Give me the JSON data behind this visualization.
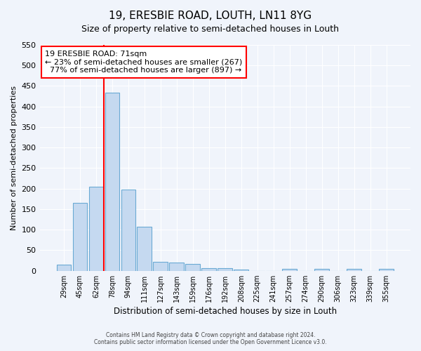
{
  "title": "19, ERESBIE ROAD, LOUTH, LN11 8YG",
  "subtitle": "Size of property relative to semi-detached houses in Louth",
  "xlabel": "Distribution of semi-detached houses by size in Louth",
  "ylabel": "Number of semi-detached properties",
  "bar_labels": [
    "29sqm",
    "45sqm",
    "62sqm",
    "78sqm",
    "94sqm",
    "111sqm",
    "127sqm",
    "143sqm",
    "159sqm",
    "176sqm",
    "192sqm",
    "208sqm",
    "225sqm",
    "241sqm",
    "257sqm",
    "274sqm",
    "290sqm",
    "306sqm",
    "323sqm",
    "339sqm",
    "355sqm"
  ],
  "bar_values": [
    15,
    165,
    205,
    433,
    197,
    107,
    21,
    20,
    17,
    6,
    6,
    3,
    0,
    0,
    5,
    0,
    5,
    0,
    5,
    0,
    5
  ],
  "bar_color": "#c5d9f0",
  "bar_edge_color": "#6aaad4",
  "property_sqm": 71,
  "pct_smaller": 23,
  "n_smaller": 267,
  "pct_larger": 77,
  "n_larger": 897,
  "annotation_label": "19 ERESBIE ROAD: 71sqm",
  "ylim_max": 550,
  "footer1": "Contains HM Land Registry data © Crown copyright and database right 2024.",
  "footer2": "Contains public sector information licensed under the Open Government Licence v3.0.",
  "bg_color": "#f0f4fb",
  "plot_bg_color": "#f0f4fb",
  "grid_color": "#ffffff",
  "title_fontsize": 11,
  "subtitle_fontsize": 9
}
